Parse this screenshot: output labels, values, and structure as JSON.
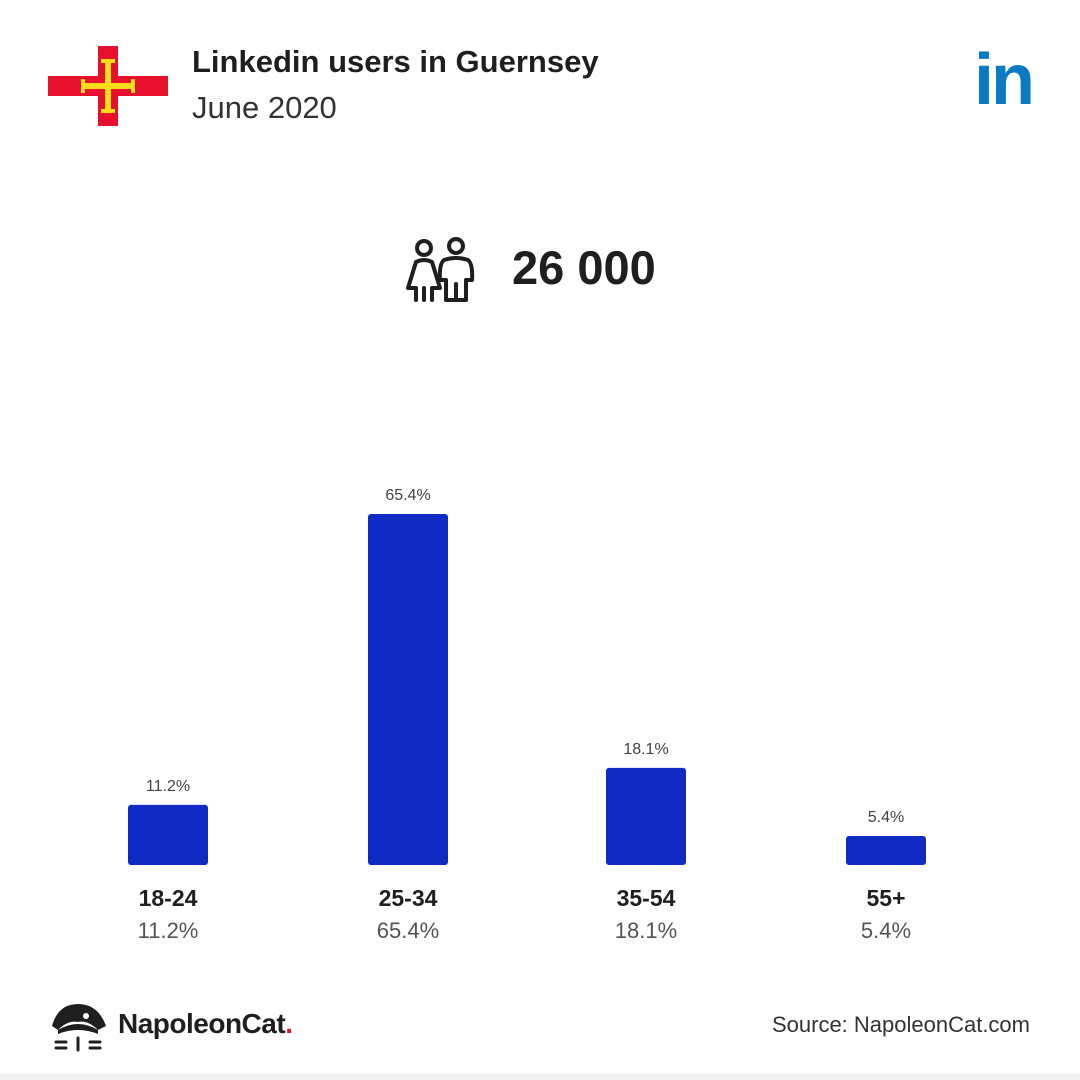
{
  "header": {
    "title": "Linkedin users in Guernsey",
    "subtitle": "June 2020",
    "flag_icon": "guernsey-flag-icon",
    "brand_icon": "linkedin-logo-icon",
    "brand_text": "in"
  },
  "total": {
    "icon": "users-icon",
    "value": "26 000"
  },
  "chart_data": {
    "type": "bar",
    "categories": [
      "18-24",
      "25-34",
      "35-54",
      "55+"
    ],
    "values": [
      11.2,
      65.4,
      18.1,
      5.4
    ],
    "value_labels": [
      "11.2%",
      "65.4%",
      "18.1%",
      "5.4%"
    ],
    "bar_color": "#0f2bc4",
    "grid": false,
    "legend": "none",
    "title": "",
    "xlabel": "",
    "ylabel": ""
  },
  "footer": {
    "brand_name": "NapoleonCat",
    "brand_dot": ".",
    "brand_icon": "napoleoncat-logo-icon",
    "source": "Source: NapoleonCat.com"
  }
}
